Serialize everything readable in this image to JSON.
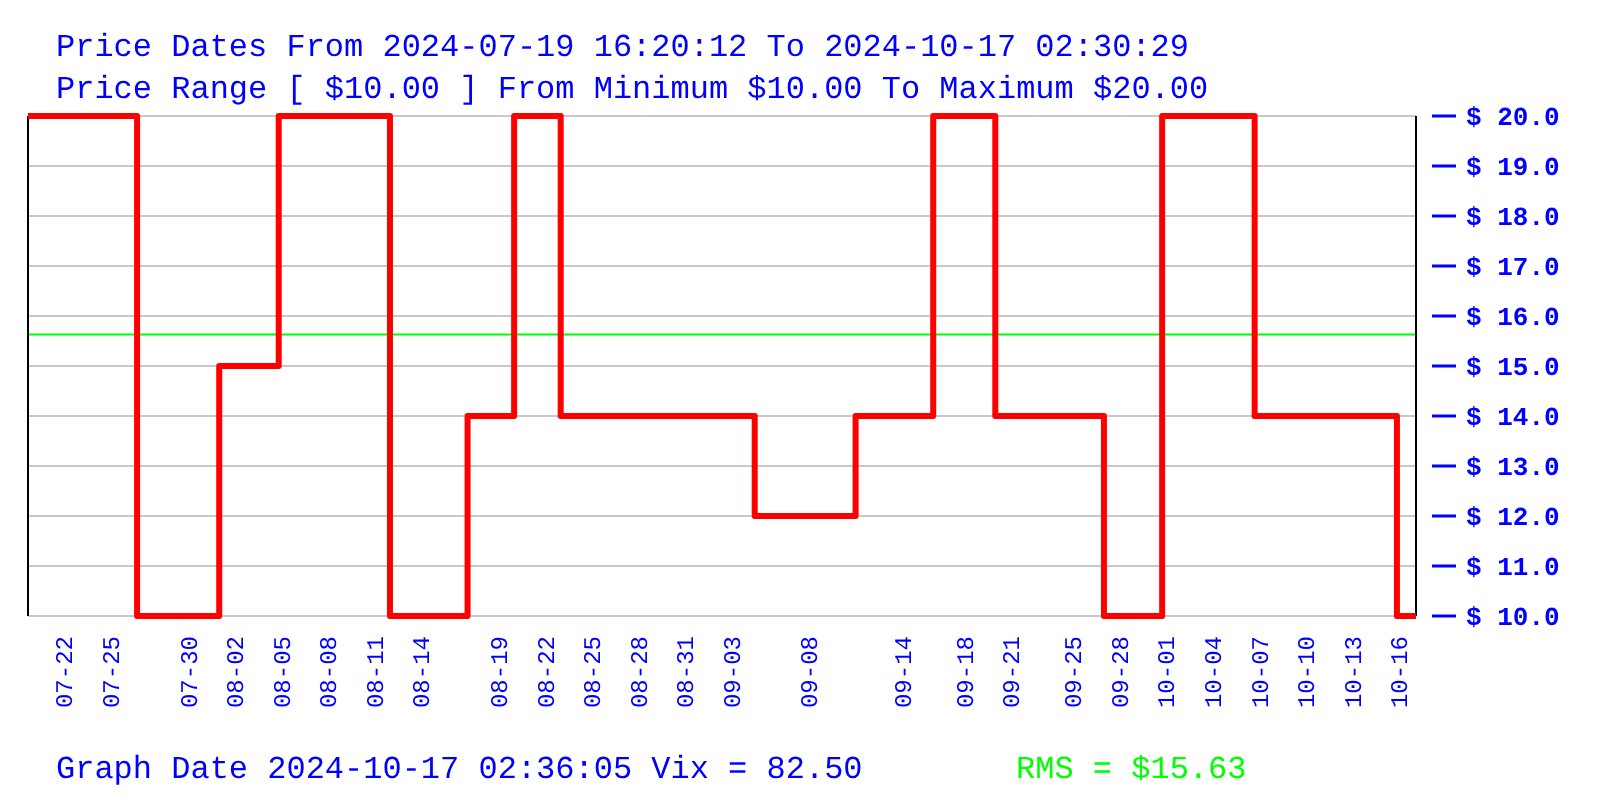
{
  "chart_data": {
    "type": "step",
    "title": "Price Dates From 2024-07-19 16:20:12 To 2024-10-17 02:30:29",
    "subtitle": "Price Range [ $10.00 ] From Minimum $10.00 To Maximum $20.00",
    "annotations": [
      "Graph Date 2024-10-17 02:36:05 Vix = 82.50"
    ],
    "series": [
      {
        "color": "#ff0000",
        "x": [
          "2024-07-19T16:20",
          "2024-07-26T17:00",
          "2024-08-01",
          "2024-08-04T20:00",
          "2024-08-12",
          "2024-08-17",
          "2024-08-20",
          "2024-08-23",
          "2024-09-04T12:00",
          "2024-09-11",
          "2024-09-16",
          "2024-09-20",
          "2024-09-27",
          "2024-09-30T18:00",
          "2024-10-06T17:00",
          "2024-10-15T21:00",
          "2024-10-17T02:30"
        ],
        "values": [
          20,
          10,
          15,
          20,
          10,
          14,
          20,
          14,
          12,
          14,
          20,
          14,
          10,
          20,
          14,
          10,
          10
        ]
      }
    ],
    "xlim": [
      "2024-07-19T16:20",
      "2024-10-17T02:30"
    ],
    "xticks": [
      {
        "value": "2024-07-22",
        "label": "07-22"
      },
      {
        "value": "2024-07-25",
        "label": "07-25"
      },
      {
        "value": "2024-07-30",
        "label": "07-30"
      },
      {
        "value": "2024-08-02",
        "label": "08-02"
      },
      {
        "value": "2024-08-05",
        "label": "08-05"
      },
      {
        "value": "2024-08-08",
        "label": "08-08"
      },
      {
        "value": "2024-08-11",
        "label": "08-11"
      },
      {
        "value": "2024-08-14",
        "label": "08-14"
      },
      {
        "value": "2024-08-19",
        "label": "08-19"
      },
      {
        "value": "2024-08-22",
        "label": "08-22"
      },
      {
        "value": "2024-08-25",
        "label": "08-25"
      },
      {
        "value": "2024-08-28",
        "label": "08-28"
      },
      {
        "value": "2024-08-31",
        "label": "08-31"
      },
      {
        "value": "2024-09-03",
        "label": "09-03"
      },
      {
        "value": "2024-09-08",
        "label": "09-08"
      },
      {
        "value": "2024-09-14",
        "label": "09-14"
      },
      {
        "value": "2024-09-18",
        "label": "09-18"
      },
      {
        "value": "2024-09-21",
        "label": "09-21"
      },
      {
        "value": "2024-09-25",
        "label": "09-25"
      },
      {
        "value": "2024-09-28",
        "label": "09-28"
      },
      {
        "value": "2024-10-01",
        "label": "10-01"
      },
      {
        "value": "2024-10-04",
        "label": "10-04"
      },
      {
        "value": "2024-10-07",
        "label": "10-07"
      },
      {
        "value": "2024-10-10",
        "label": "10-10"
      },
      {
        "value": "2024-10-13",
        "label": "10-13"
      },
      {
        "value": "2024-10-16",
        "label": "10-16"
      }
    ],
    "ylim": [
      10,
      20
    ],
    "yticks": [
      {
        "value": 10,
        "label": "$ 10.0"
      },
      {
        "value": 11,
        "label": "$ 11.0"
      },
      {
        "value": 12,
        "label": "$ 12.0"
      },
      {
        "value": 13,
        "label": "$ 13.0"
      },
      {
        "value": 14,
        "label": "$ 14.0"
      },
      {
        "value": 15,
        "label": "$ 15.0"
      },
      {
        "value": 16,
        "label": "$ 16.0"
      },
      {
        "value": 17,
        "label": "$ 17.0"
      },
      {
        "value": 18,
        "label": "$ 18.0"
      },
      {
        "value": 19,
        "label": "$ 19.0"
      },
      {
        "value": 20,
        "label": "$ 20.0"
      }
    ],
    "grid": "y",
    "ref_lines": [
      {
        "axis": "y",
        "value": 15.63,
        "label": "RMS = $15.63",
        "color": "#00ff00"
      }
    ]
  }
}
